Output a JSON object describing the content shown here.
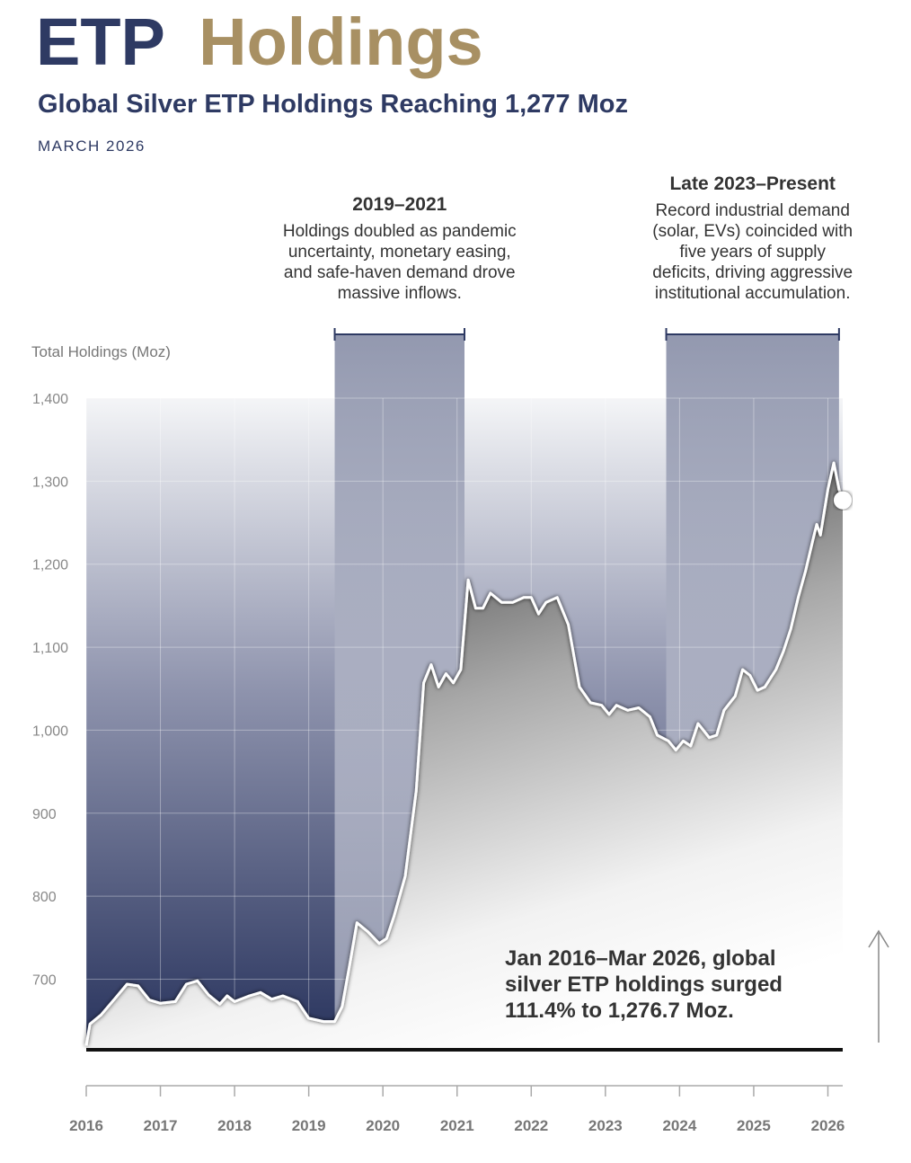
{
  "chart_data": {
    "type": "area",
    "title": [
      "ETP",
      "Holdings"
    ],
    "subtitle": "Global Silver ETP Holdings Reaching 1,277 Moz",
    "date": "MARCH 2026",
    "y_label": "Total Holdings (Moz)",
    "title_colors": [
      "#2e3a63",
      "#a89063"
    ],
    "color": "#ffffff",
    "xlim": [
      2016,
      2026.2
    ],
    "ylim": [
      615,
      1400
    ],
    "xticks": [
      2016,
      2017,
      2018,
      2019,
      2020,
      2021,
      2022,
      2023,
      2024,
      2025,
      2026
    ],
    "yticks": [
      700,
      800,
      900,
      {
        "value": 1000,
        "label": "1,000"
      },
      {
        "value": 1100,
        "label": "1,100"
      },
      {
        "value": 1200,
        "label": "1,200"
      },
      {
        "value": 1300,
        "label": "1,300"
      },
      {
        "value": 1400,
        "label": "1,400"
      }
    ],
    "grid": true,
    "x": [
      2016.0,
      2016.05,
      2016.2,
      2016.4,
      2016.55,
      2016.7,
      2016.85,
      2017.0,
      2017.2,
      2017.35,
      2017.5,
      2017.65,
      2017.8,
      2017.9,
      2018.0,
      2018.2,
      2018.35,
      2018.5,
      2018.65,
      2018.85,
      2019.0,
      2019.2,
      2019.35,
      2019.45,
      2019.55,
      2019.65,
      2019.8,
      2019.95,
      2020.05,
      2020.15,
      2020.3,
      2020.45,
      2020.55,
      2020.65,
      2020.75,
      2020.85,
      2020.95,
      2021.05,
      2021.15,
      2021.25,
      2021.35,
      2021.45,
      2021.6,
      2021.75,
      2021.9,
      2022.0,
      2022.1,
      2022.2,
      2022.35,
      2022.5,
      2022.65,
      2022.8,
      2022.95,
      2023.05,
      2023.15,
      2023.3,
      2023.45,
      2023.6,
      2023.7,
      2023.85,
      2023.95,
      2024.05,
      2024.15,
      2024.25,
      2024.4,
      2024.5,
      2024.6,
      2024.75,
      2024.85,
      2024.95,
      2025.05,
      2025.15,
      2025.3,
      2025.4,
      2025.5,
      2025.6,
      2025.7,
      2025.8,
      2025.85,
      2025.9,
      2026.0,
      2026.08,
      2026.15,
      2026.2
    ],
    "values": [
      620,
      646,
      657,
      678,
      694,
      692,
      675,
      671,
      673,
      694,
      698,
      681,
      670,
      680,
      673,
      680,
      684,
      676,
      680,
      673,
      653,
      649,
      649,
      667,
      716,
      768,
      757,
      743,
      749,
      776,
      824,
      927,
      1057,
      1079,
      1052,
      1068,
      1057,
      1073,
      1181,
      1147,
      1147,
      1165,
      1154,
      1154,
      1160,
      1160,
      1140,
      1154,
      1160,
      1127,
      1052,
      1033,
      1030,
      1019,
      1030,
      1024,
      1027,
      1016,
      994,
      987,
      976,
      987,
      981,
      1008,
      991,
      994,
      1024,
      1041,
      1073,
      1066,
      1048,
      1052,
      1073,
      1095,
      1122,
      1160,
      1192,
      1230,
      1248,
      1235,
      1290,
      1322,
      1290,
      1277
    ],
    "highlights": [
      {
        "title": "2019–2021",
        "range": [
          2019.35,
          2021.1
        ],
        "lines": [
          "Holdings doubled as pandemic",
          "uncertainty, monetary easing,",
          "and safe-haven demand drove",
          "massive inflows."
        ]
      },
      {
        "title": "Late 2023–Present",
        "range": [
          2023.82,
          2026.15
        ],
        "lines": [
          "Record industrial demand",
          "(solar, EVs) coincided with",
          "five years of supply",
          "deficits, driving aggressive",
          "institutional accumulation."
        ]
      }
    ],
    "annotation": [
      "Jan 2016–Mar 2026, global",
      "silver ETP holdings surged",
      "111.4% to 1,276.7 Moz."
    ]
  }
}
